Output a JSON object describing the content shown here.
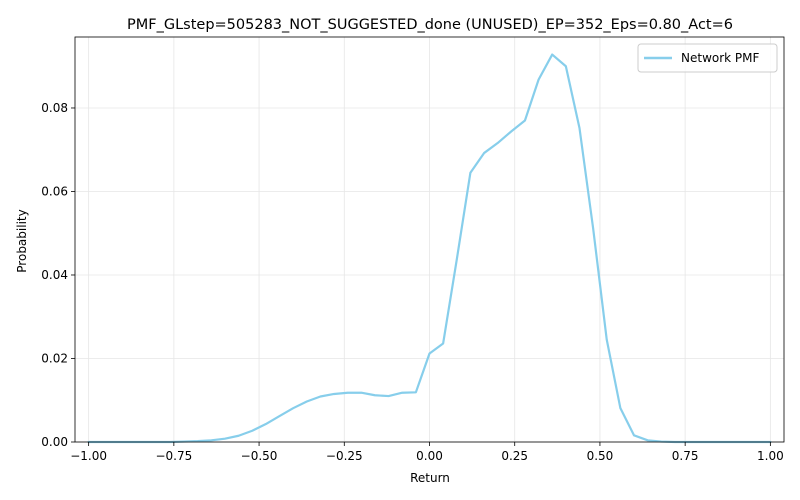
{
  "chart_data": {
    "type": "line",
    "title": "PMF_GLstep=505283_NOT_SUGGESTED_done (UNUSED)_EP=352_Eps=0.80_Act=6",
    "xlabel": "Return",
    "ylabel": "Probability",
    "xlim": [
      -1.04,
      1.04
    ],
    "ylim": [
      0.0,
      0.097
    ],
    "xticks": [
      -1.0,
      -0.75,
      -0.5,
      -0.25,
      0.0,
      0.25,
      0.5,
      0.75,
      1.0
    ],
    "xtick_labels": [
      "−1.00",
      "−0.75",
      "−0.50",
      "−0.25",
      "0.00",
      "0.25",
      "0.50",
      "0.75",
      "1.00"
    ],
    "yticks": [
      0.0,
      0.02,
      0.04,
      0.06,
      0.08
    ],
    "ytick_labels": [
      "0.00",
      "0.02",
      "0.04",
      "0.06",
      "0.08"
    ],
    "grid": true,
    "legend_position": "top-right",
    "series": [
      {
        "name": "Network PMF",
        "color": "#87CEEB",
        "x": [
          -1.0,
          -0.96,
          -0.92,
          -0.88,
          -0.84,
          -0.8,
          -0.76,
          -0.72,
          -0.68,
          -0.64,
          -0.6,
          -0.56,
          -0.52,
          -0.48,
          -0.44,
          -0.4,
          -0.36,
          -0.32,
          -0.28,
          -0.24,
          -0.2,
          -0.16,
          -0.12,
          -0.08,
          -0.04,
          0.0,
          0.04,
          0.08,
          0.12,
          0.16,
          0.2,
          0.24,
          0.28,
          0.32,
          0.36,
          0.4,
          0.44,
          0.48,
          0.52,
          0.56,
          0.6,
          0.64,
          0.68,
          0.72,
          0.76,
          0.8,
          0.84,
          0.88,
          0.92,
          0.96,
          1.0
        ],
        "y": [
          0.0,
          0.0,
          0.0,
          0.0,
          0.0,
          0.0,
          0.0,
          0.0001,
          0.0002,
          0.0004,
          0.0008,
          0.0015,
          0.0027,
          0.0043,
          0.0062,
          0.0081,
          0.0097,
          0.0109,
          0.0115,
          0.0118,
          0.0118,
          0.0112,
          0.011,
          0.0118,
          0.0119,
          0.0212,
          0.0236,
          0.0437,
          0.0645,
          0.0692,
          0.0716,
          0.0744,
          0.077,
          0.0868,
          0.0928,
          0.09,
          0.0752,
          0.0512,
          0.0245,
          0.0081,
          0.0016,
          0.0004,
          0.0001,
          0.0,
          0.0,
          0.0,
          0.0,
          0.0,
          0.0,
          0.0,
          0.0
        ]
      }
    ]
  }
}
